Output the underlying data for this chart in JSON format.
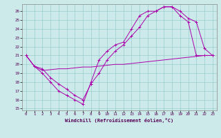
{
  "bg_color": "#cceaea",
  "line_color": "#aa00aa",
  "grid_color": "#99cccc",
  "xlabel": "Windchill (Refroidissement éolien,°C)",
  "xlim": [
    -0.5,
    23.5
  ],
  "ylim": [
    14.8,
    26.8
  ],
  "yticks": [
    15,
    16,
    17,
    18,
    19,
    20,
    21,
    22,
    23,
    24,
    25,
    26
  ],
  "xticks": [
    0,
    1,
    2,
    3,
    4,
    5,
    6,
    7,
    8,
    9,
    10,
    11,
    12,
    13,
    14,
    15,
    16,
    17,
    18,
    19,
    20,
    21,
    22,
    23
  ],
  "line1_x": [
    0,
    1,
    2,
    3,
    4,
    5,
    6,
    7,
    8,
    9,
    10,
    11,
    12,
    13,
    14,
    15,
    16,
    17,
    18,
    19,
    20,
    21,
    22,
    23
  ],
  "line1_y": [
    21.0,
    19.8,
    19.0,
    18.0,
    17.0,
    16.5,
    16.0,
    15.5,
    18.0,
    20.5,
    21.5,
    22.2,
    22.5,
    24.0,
    25.5,
    26.0,
    26.0,
    26.5,
    26.5,
    25.5,
    24.8,
    21.0,
    21.0,
    21.0
  ],
  "line2_x": [
    0,
    1,
    2,
    3,
    4,
    5,
    6,
    7,
    8,
    9,
    10,
    11,
    12,
    13,
    14,
    15,
    16,
    17,
    18,
    19,
    20,
    21,
    22,
    23
  ],
  "line2_y": [
    21.0,
    19.8,
    19.5,
    18.5,
    17.8,
    17.2,
    16.5,
    16.0,
    17.8,
    19.0,
    20.5,
    21.5,
    22.2,
    23.2,
    24.2,
    25.5,
    26.0,
    26.5,
    26.5,
    26.0,
    25.2,
    24.8,
    21.8,
    21.0
  ],
  "line3_x": [
    0,
    1,
    2,
    3,
    4,
    5,
    6,
    7,
    8,
    9,
    10,
    11,
    12,
    13,
    14,
    15,
    16,
    17,
    18,
    19,
    20,
    21,
    22,
    23
  ],
  "line3_y": [
    21.0,
    19.8,
    19.3,
    19.4,
    19.5,
    19.5,
    19.6,
    19.7,
    19.7,
    19.8,
    19.9,
    20.0,
    20.0,
    20.1,
    20.2,
    20.3,
    20.4,
    20.5,
    20.6,
    20.7,
    20.8,
    20.9,
    21.0,
    21.0
  ]
}
